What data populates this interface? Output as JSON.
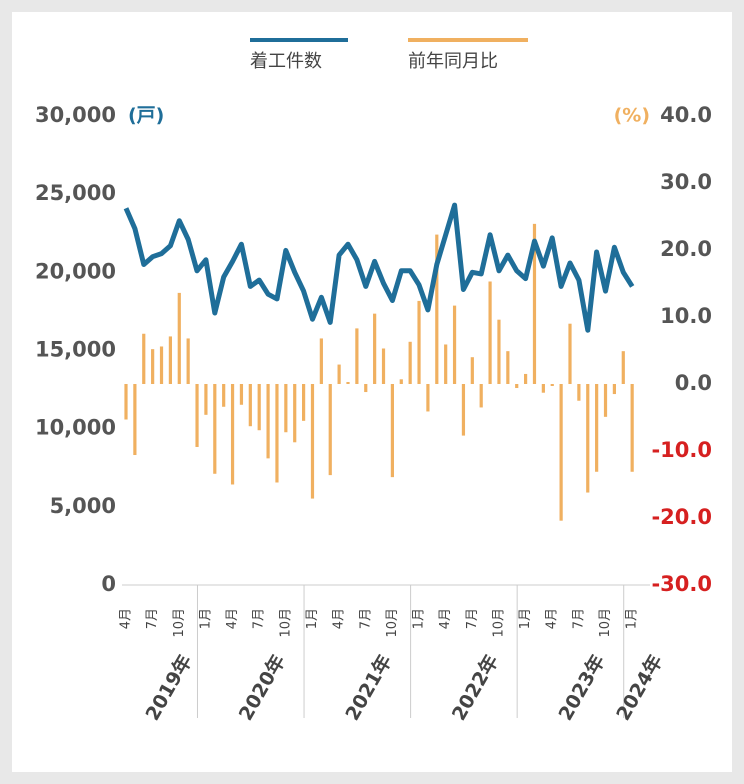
{
  "chart_data": {
    "type": "bar-line",
    "categories": [
      "4月",
      null,
      null,
      "7月",
      null,
      null,
      "10月",
      null,
      null,
      "1月",
      null,
      null,
      "4月",
      null,
      null,
      "7月",
      null,
      null,
      "10月",
      null,
      null,
      "1月",
      null,
      null,
      "4月",
      null,
      null,
      "7月",
      null,
      null,
      "10月",
      null,
      null,
      "1月",
      null,
      null,
      "4月",
      null,
      null,
      "7月",
      null,
      null,
      "10月",
      null,
      null,
      "1月",
      null,
      null,
      "4月",
      null,
      null,
      "7月",
      null,
      null,
      "10月",
      null,
      null,
      "1月"
    ],
    "years": [
      "2019年",
      "2020年",
      "2021年",
      "2022年",
      "2023年",
      "2024年"
    ],
    "y_unit": "(戸)",
    "y2_unit": "(%)",
    "series": [
      {
        "name": "着工件数",
        "type": "line",
        "color": "#1f6e99",
        "values": [
          24100,
          22800,
          20500,
          21000,
          21200,
          21700,
          23300,
          22100,
          20100,
          20800,
          17400,
          19700,
          20700,
          21800,
          19100,
          19500,
          18600,
          18300,
          21400,
          20000,
          18800,
          17000,
          18400,
          16800,
          21100,
          21800,
          20800,
          19100,
          20700,
          19300,
          18200,
          20100,
          20100,
          19200,
          17600,
          20500,
          22400,
          24300,
          18900,
          20000,
          19900,
          22400,
          20100,
          21100,
          20100,
          19600,
          22000,
          20400,
          22200,
          19100,
          20600,
          19500,
          16300,
          21300,
          18800,
          21600,
          20000,
          19100
        ]
      },
      {
        "name": "前年同月比",
        "type": "bar",
        "axis": "y2",
        "color": "#f0b060",
        "values": [
          -5.3,
          -10.6,
          7.5,
          5.2,
          5.6,
          7.1,
          13.6,
          6.8,
          -9.4,
          -4.6,
          -13.4,
          -3.4,
          -15.0,
          -3.1,
          -6.3,
          -6.9,
          -11.1,
          -14.7,
          -7.2,
          -8.7,
          -5.5,
          -17.1,
          6.8,
          -13.6,
          2.9,
          0.3,
          8.3,
          -1.2,
          10.5,
          5.3,
          -13.9,
          0.7,
          6.3,
          12.4,
          -4.1,
          22.3,
          5.9,
          11.7,
          -7.7,
          4.0,
          -3.5,
          15.3,
          9.6,
          4.9,
          -0.6,
          1.5,
          23.9,
          -1.3,
          -0.3,
          -20.4,
          9.0,
          -2.5,
          -16.2,
          -13.1,
          -4.9,
          -1.5,
          4.9,
          -13.1
        ]
      }
    ],
    "ylim": [
      0,
      30000
    ],
    "yticks": [
      0,
      {
        "value": 5000,
        "label": "5,000"
      },
      {
        "value": 10000,
        "label": "10,000"
      },
      {
        "value": 15000,
        "label": "15,000"
      },
      {
        "value": 20000,
        "label": "20,000"
      },
      {
        "value": 25000,
        "label": "25,000"
      },
      {
        "value": 30000,
        "label": "30,000"
      }
    ],
    "y2lim": [
      -30,
      40
    ],
    "y2ticks": [
      {
        "value": -30,
        "label": "-30.0"
      },
      {
        "value": -20,
        "label": "-20.0"
      },
      {
        "value": -10,
        "label": "-10.0"
      },
      {
        "value": 0,
        "label": "0.0"
      },
      {
        "value": 10,
        "label": "10.0"
      },
      {
        "value": 20,
        "label": "20.0"
      },
      {
        "value": 30,
        "label": "30.0"
      },
      {
        "value": 40,
        "label": "40.0"
      }
    ],
    "y2_positive_color": "#f0b060",
    "y2_negative_color": "#d62020"
  }
}
